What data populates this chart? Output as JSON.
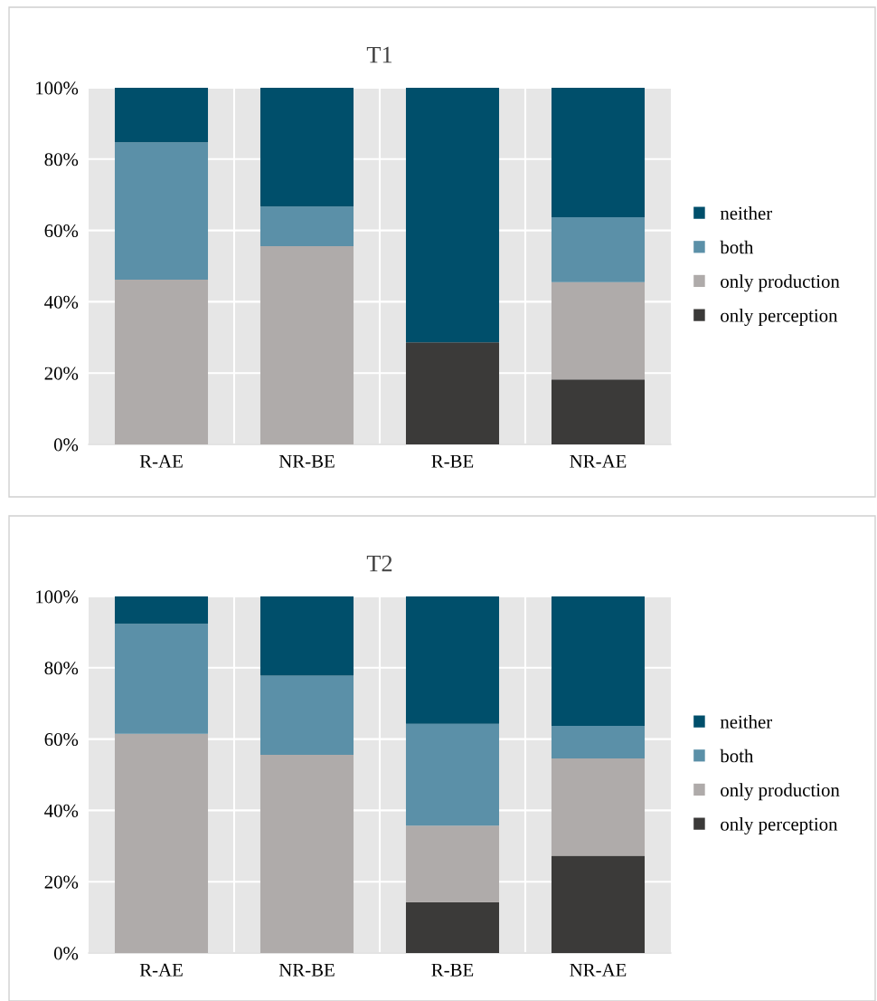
{
  "chart_data": [
    {
      "type": "bar",
      "title": "T1",
      "stacked": true,
      "categories": [
        "R-AE",
        "NR-BE",
        "R-BE",
        "NR-AE"
      ],
      "ylim": [
        0,
        100
      ],
      "yticks": [
        {
          "value": 0,
          "label": "0%"
        },
        {
          "value": 20,
          "label": "20%"
        },
        {
          "value": 40,
          "label": "40%"
        },
        {
          "value": 60,
          "label": "60%"
        },
        {
          "value": 80,
          "label": "80%"
        },
        {
          "value": 100,
          "label": "100%"
        }
      ],
      "grid": "y",
      "legend": "right",
      "series": [
        {
          "name": "only perception",
          "color": "#3b3a39",
          "values": [
            0,
            0,
            28.6,
            18.2
          ]
        },
        {
          "name": "only production",
          "color": "#afabaa",
          "values": [
            46.2,
            55.6,
            0,
            27.3
          ]
        },
        {
          "name": "both",
          "color": "#5b90a8",
          "values": [
            38.5,
            11.1,
            0,
            18.2
          ]
        },
        {
          "name": "neither",
          "color": "#004f6b",
          "values": [
            15.4,
            33.3,
            71.4,
            36.4
          ]
        }
      ]
    },
    {
      "type": "bar",
      "title": "T2",
      "stacked": true,
      "categories": [
        "R-AE",
        "NR-BE",
        "R-BE",
        "NR-AE"
      ],
      "ylim": [
        0,
        100
      ],
      "yticks": [
        {
          "value": 0,
          "label": "0%"
        },
        {
          "value": 20,
          "label": "20%"
        },
        {
          "value": 40,
          "label": "40%"
        },
        {
          "value": 60,
          "label": "60%"
        },
        {
          "value": 80,
          "label": "80%"
        },
        {
          "value": 100,
          "label": "100%"
        }
      ],
      "grid": "y",
      "legend": "right",
      "series": [
        {
          "name": "only perception",
          "color": "#3b3a39",
          "values": [
            0,
            0,
            14.3,
            27.3
          ]
        },
        {
          "name": "only production",
          "color": "#afabaa",
          "values": [
            61.5,
            55.6,
            21.4,
            27.3
          ]
        },
        {
          "name": "both",
          "color": "#5b90a8",
          "values": [
            30.8,
            22.2,
            28.6,
            9.1
          ]
        },
        {
          "name": "neither",
          "color": "#004f6b",
          "values": [
            7.7,
            22.2,
            35.7,
            36.4
          ]
        }
      ]
    }
  ]
}
